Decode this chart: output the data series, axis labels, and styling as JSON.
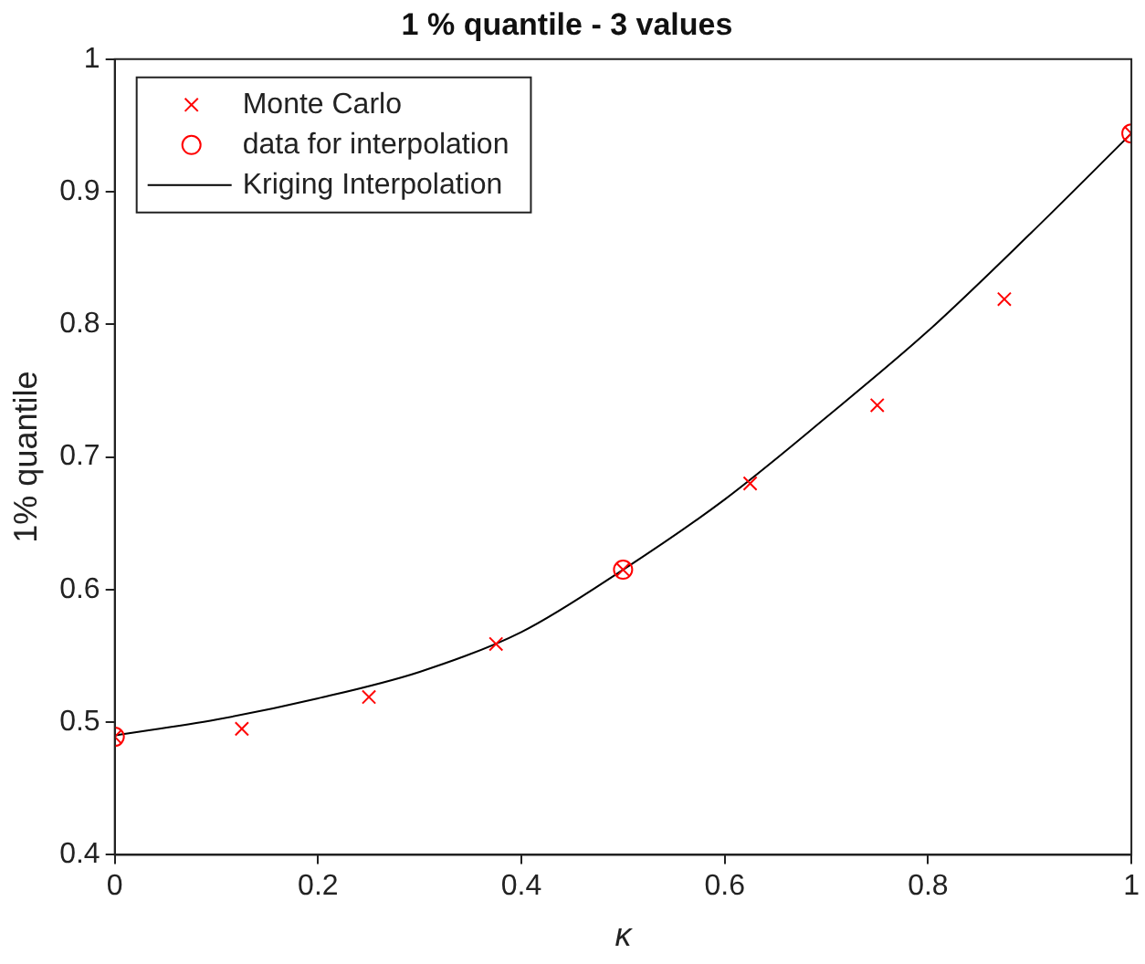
{
  "chart_data": {
    "type": "scatter",
    "title": "1 % quantile - 3 values",
    "xlabel": "κ",
    "ylabel": "1% quantile",
    "xlim": [
      0,
      1
    ],
    "xticks": [
      0,
      0.2,
      0.4,
      0.6,
      0.8,
      1
    ],
    "ylim": [
      0.4,
      1
    ],
    "yticks": [
      0.4,
      0.5,
      0.6,
      0.7,
      0.8,
      0.9,
      1
    ],
    "grid": false,
    "legend": "top left",
    "series": [
      {
        "name": "Monte Carlo",
        "type": "scatter",
        "marker": "cross",
        "color": "#ff0000",
        "x": [
          0,
          0.125,
          0.25,
          0.375,
          0.5,
          0.625,
          0.75,
          0.875,
          1
        ],
        "values": [
          0.489,
          0.495,
          0.519,
          0.559,
          0.615,
          0.68,
          0.739,
          0.819,
          0.944
        ]
      },
      {
        "name": "data for interpolation",
        "type": "scatter",
        "marker": "circle",
        "color": "#ff0000",
        "x": [
          0,
          0.5,
          1
        ],
        "values": [
          0.489,
          0.615,
          0.944
        ]
      },
      {
        "name": "Kriging Interpolation",
        "type": "line",
        "marker": "none",
        "line_style": "solid",
        "color": "#000000",
        "x": [
          0,
          0.1,
          0.2,
          0.3,
          0.4,
          0.5,
          0.6,
          0.7,
          0.8,
          0.9,
          1
        ],
        "values": [
          0.49,
          0.502,
          0.518,
          0.538,
          0.568,
          0.615,
          0.668,
          0.73,
          0.795,
          0.868,
          0.944
        ]
      }
    ]
  }
}
